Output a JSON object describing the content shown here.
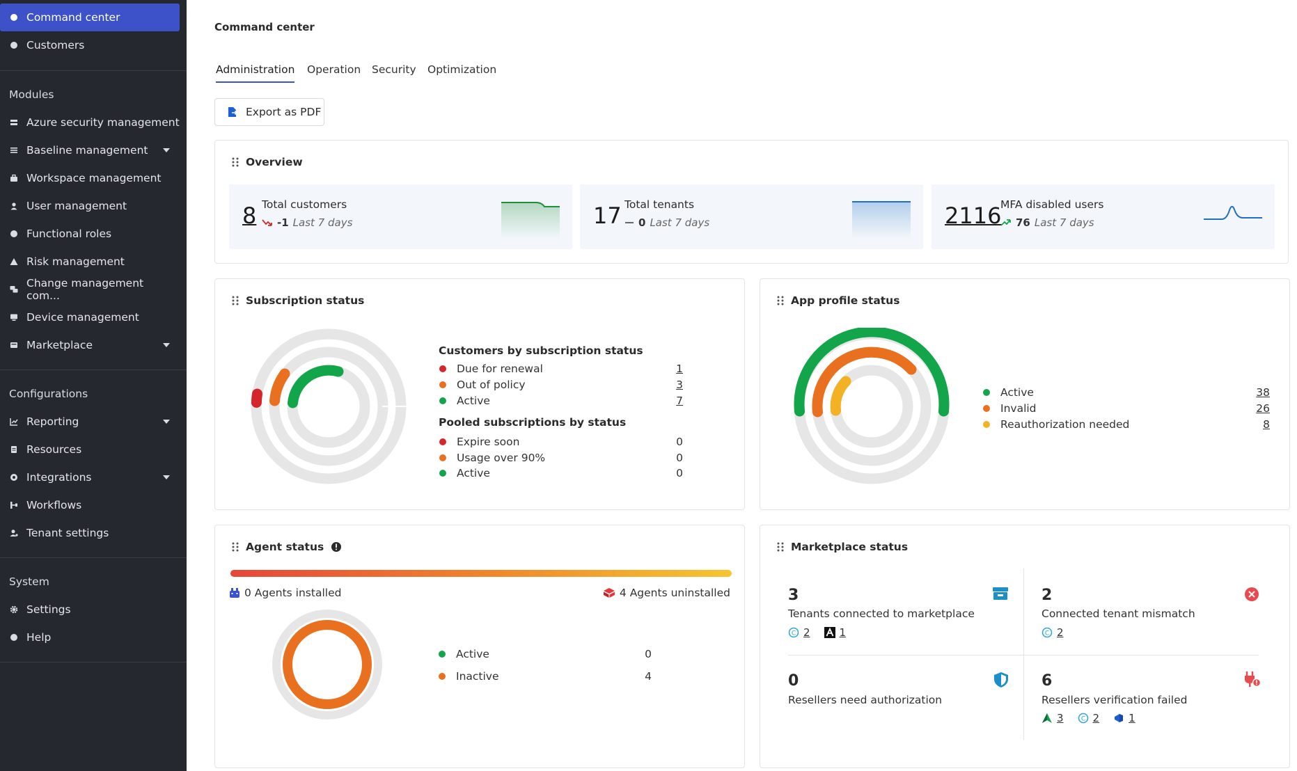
{
  "sidebar": {
    "items_top": [
      "Command center",
      "Customers"
    ],
    "modules_title": "Modules",
    "modules": [
      "Azure security management",
      "Baseline management",
      "Workspace management",
      "User management",
      "Functional roles",
      "Risk management",
      "Change management com...",
      "Device management",
      "Marketplace"
    ],
    "config_title": "Configurations",
    "configs": [
      "Reporting",
      "Resources",
      "Integrations",
      "Workflows",
      "Tenant settings"
    ],
    "system_title": "System",
    "system": [
      "Settings",
      "Help"
    ]
  },
  "header": {
    "title": "Command center"
  },
  "tabs": [
    "Administration",
    "Operation",
    "Security",
    "Optimization"
  ],
  "export_label": "Export as PDF",
  "overview": {
    "title": "Overview",
    "stats": [
      {
        "value": "8",
        "label": "Total customers",
        "delta": "-1",
        "period": "Last 7 days"
      },
      {
        "value": "17",
        "label": "Total tenants",
        "delta": "0",
        "period": "Last 7 days"
      },
      {
        "value": "2116",
        "label": "MFA disabled users",
        "delta": "76",
        "period": "Last 7 days"
      }
    ]
  },
  "subscription": {
    "title": "Subscription status",
    "customers_title": "Customers by subscription status",
    "customers": [
      {
        "label": "Due for renewal",
        "value": "1",
        "color": "#d4262b"
      },
      {
        "label": "Out of policy",
        "value": "3",
        "color": "#e8701f"
      },
      {
        "label": "Active",
        "value": "7",
        "color": "#12a54a"
      }
    ],
    "pooled_title": "Pooled subscriptions by status",
    "pooled": [
      {
        "label": "Expire soon",
        "value": "0",
        "color": "#d4262b"
      },
      {
        "label": "Usage over 90%",
        "value": "0",
        "color": "#e8701f"
      },
      {
        "label": "Active",
        "value": "0",
        "color": "#12a54a"
      }
    ]
  },
  "app_profile": {
    "title": "App profile status",
    "items": [
      {
        "label": "Active",
        "value": "38",
        "color": "#12a54a"
      },
      {
        "label": "Invalid",
        "value": "26",
        "color": "#e8701f"
      },
      {
        "label": "Reauthorization needed",
        "value": "8",
        "color": "#f2b224"
      }
    ]
  },
  "agent": {
    "title": "Agent status",
    "installed": "0 Agents installed",
    "uninstalled": "4 Agents uninstalled",
    "items": [
      {
        "label": "Active",
        "value": "0",
        "color": "#12a54a"
      },
      {
        "label": "Inactive",
        "value": "4",
        "color": "#e8701f"
      }
    ]
  },
  "marketplace": {
    "title": "Marketplace status",
    "cells": [
      {
        "num": "3",
        "label": "Tenants connected to marketplace",
        "subs": [
          "2",
          "1"
        ]
      },
      {
        "num": "2",
        "label": "Connected tenant mismatch",
        "subs": [
          "2"
        ]
      },
      {
        "num": "0",
        "label": "Resellers need authorization",
        "subs": []
      },
      {
        "num": "6",
        "label": "Resellers verification failed",
        "subs": [
          "3",
          "2",
          "1"
        ]
      }
    ]
  },
  "colors": {
    "accent": "#3d52c9",
    "sidebar": "#25282e",
    "green": "#12a54a",
    "orange": "#e8701f",
    "red": "#d4262b",
    "yellow": "#f2b224",
    "track": "#e6e6e6"
  }
}
